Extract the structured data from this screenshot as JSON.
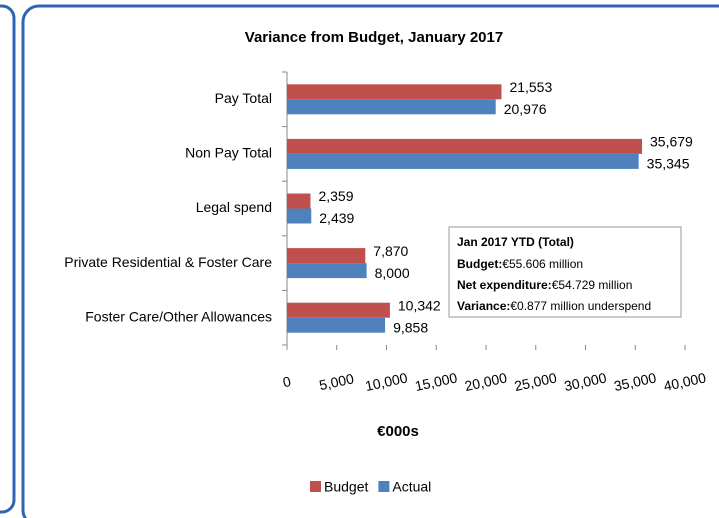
{
  "chart_data": {
    "type": "bar",
    "orientation": "horizontal",
    "title": "Variance from Budget, January 2017",
    "x_label": "€000s",
    "categories": [
      "Pay  Total",
      "Non Pay Total",
      "Legal spend",
      "Private Residential & Foster Care",
      "Foster Care/Other Allowances"
    ],
    "series": [
      {
        "name": "Budget",
        "color": "#c0504d",
        "values": [
          21553,
          35679,
          2359,
          7870,
          10342
        ],
        "value_labels": [
          "21,553",
          "35,679",
          "2,359",
          "7,870",
          "10,342"
        ]
      },
      {
        "name": "Actual",
        "color": "#4f81bd",
        "values": [
          20976,
          35345,
          2439,
          8000,
          9858
        ],
        "value_labels": [
          "20,976",
          "35,345",
          "2,439",
          "8,000",
          "9,858"
        ]
      }
    ],
    "xlim": [
      0,
      40000
    ],
    "xticks": [
      0,
      {
        "value": 5000,
        "label": "5,000"
      },
      {
        "value": 10000,
        "label": "10,000"
      },
      {
        "value": 15000,
        "label": "15,000"
      },
      {
        "value": 20000,
        "label": "20,000"
      },
      {
        "value": 25000,
        "label": "25,000"
      },
      {
        "value": 30000,
        "label": "30,000"
      },
      {
        "value": 35000,
        "label": "35,000"
      },
      {
        "value": 40000,
        "label": "40,000"
      }
    ],
    "legend": "bottom",
    "annotation": {
      "title": "Jan 2017 YTD (Total)",
      "lines": [
        {
          "label": "Budget:",
          "text": "€55.606 million"
        },
        {
          "label": "Net expenditure:",
          "text": "€54.729 million"
        },
        {
          "label": "Variance:",
          "text": "€0.877 million underspend"
        }
      ]
    }
  }
}
